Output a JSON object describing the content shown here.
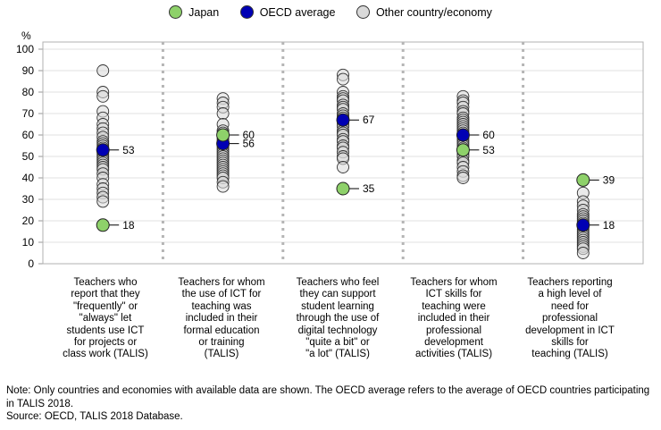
{
  "legend": [
    {
      "label": "Japan",
      "color": "#8ed16a"
    },
    {
      "label": "OECD average",
      "color": "#0000b4"
    },
    {
      "label": "Other country/economy",
      "color": "#d9d9d9"
    }
  ],
  "chart_data": {
    "type": "scatter",
    "ylabel": "%",
    "ylim": [
      0,
      100
    ],
    "yticks": [
      0,
      10,
      20,
      30,
      40,
      50,
      60,
      70,
      80,
      90,
      100
    ],
    "grid": true,
    "legend_position": "top",
    "categories": [
      "Teachers who\nreport that they\n\"frequently\" or\n\"always\" let\nstudents use ICT\nfor projects or\nclass work (TALIS)",
      "Teachers for whom\nthe use of ICT for\nteaching was\nincluded in their\nformal education\nor training\n(TALIS)",
      "Teachers who feel\nthey can support\nstudent learning\nthrough the use of\ndigital technology\n\"quite a bit\" or\n\"a lot\" (TALIS)",
      "Teachers for whom\nICT skills for\nteaching were\nincluded in their\nprofessional\ndevelopment\nactivities (TALIS)",
      "Teachers reporting\na high level of\nneed for\nprofessional\ndevelopment in ICT\nskills for\nteaching (TALIS)"
    ],
    "series": [
      {
        "name": "Japan",
        "values": [
          18,
          60,
          35,
          53,
          39
        ]
      },
      {
        "name": "OECD average",
        "values": [
          53,
          56,
          67,
          60,
          18
        ]
      },
      {
        "name": "Other country/economy",
        "values": [
          [
            90,
            80,
            78,
            71,
            68,
            65,
            63,
            61,
            59,
            57,
            56,
            55,
            54,
            52,
            51,
            50,
            49,
            48,
            47,
            46,
            45,
            44,
            42,
            40,
            37,
            35,
            33,
            31,
            29
          ],
          [
            77,
            75,
            73,
            70,
            65,
            62,
            61,
            59,
            58,
            57,
            56,
            55,
            54,
            53,
            52,
            51,
            50,
            49,
            48,
            47,
            46,
            45,
            44,
            43,
            42,
            41,
            40,
            38,
            36
          ],
          [
            88,
            86,
            80,
            78,
            77,
            76,
            74,
            73,
            72,
            70,
            69,
            68,
            66,
            65,
            64,
            62,
            61,
            60,
            58,
            57,
            55,
            54,
            52,
            50,
            49,
            45
          ],
          [
            78,
            76,
            75,
            73,
            71,
            70,
            68,
            67,
            66,
            65,
            64,
            63,
            62,
            61,
            59,
            58,
            57,
            56,
            55,
            54,
            52,
            51,
            50,
            48,
            47,
            45,
            43,
            41,
            40
          ],
          [
            33,
            29,
            27,
            25,
            23,
            22,
            21,
            20,
            19,
            18,
            17,
            16,
            15,
            14,
            13,
            12,
            11,
            10,
            9,
            8,
            7,
            5
          ]
        ]
      }
    ],
    "data_labels": [
      {
        "japan": "18",
        "oecd": "53"
      },
      {
        "japan": "60",
        "oecd": "56"
      },
      {
        "japan": "35",
        "oecd": "67"
      },
      {
        "japan": "53",
        "oecd": "60"
      },
      {
        "japan": "39",
        "oecd": "18"
      }
    ]
  },
  "footnotes": {
    "note": "Note: Only countries and economies with available data are shown. The OECD average refers to the average of OECD countries participating in TALIS 2018.",
    "source": "Source: OECD, TALIS 2018 Database."
  }
}
